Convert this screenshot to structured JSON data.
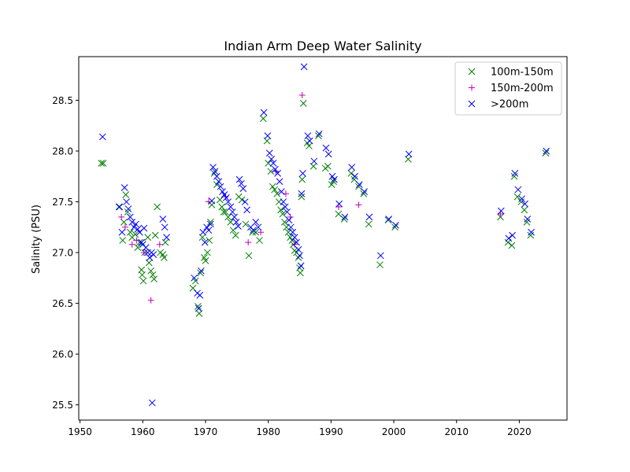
{
  "chart_data": {
    "type": "scatter",
    "title": "Indian Arm Deep Water Salinity",
    "xlabel": "",
    "ylabel": "Salinity (PSU)",
    "xlim": [
      1949.8,
      2027.6
    ],
    "ylim": [
      25.35,
      28.93
    ],
    "xticks": [
      1950,
      1960,
      1970,
      1980,
      1990,
      2000,
      2010,
      2020
    ],
    "xtick_labels": [
      "1950",
      "1960",
      "1970",
      "1980",
      "1990",
      "2000",
      "2010",
      "2020"
    ],
    "yticks": [
      25.5,
      26.0,
      26.5,
      27.0,
      27.5,
      28.0,
      28.5
    ],
    "ytick_labels": [
      "25.5",
      "26.0",
      "26.5",
      "27.0",
      "27.5",
      "28.0",
      "28.5"
    ],
    "grid": false,
    "legend_position": "top-right",
    "series": [
      {
        "name": "100m-150m",
        "marker": "x",
        "color": "#008000",
        "points": [
          [
            1953.4,
            27.88
          ],
          [
            1953.7,
            27.88
          ],
          [
            1956.2,
            27.45
          ],
          [
            1956.8,
            27.12
          ],
          [
            1957.0,
            27.3
          ],
          [
            1957.3,
            27.57
          ],
          [
            1957.6,
            27.4
          ],
          [
            1958.0,
            27.2
          ],
          [
            1958.3,
            27.15
          ],
          [
            1958.8,
            27.18
          ],
          [
            1959.2,
            27.05
          ],
          [
            1959.5,
            27.1
          ],
          [
            1959.8,
            26.83
          ],
          [
            1959.9,
            26.78
          ],
          [
            1960.1,
            26.72
          ],
          [
            1960.3,
            27.0
          ],
          [
            1960.8,
            27.15
          ],
          [
            1961.0,
            26.9
          ],
          [
            1961.3,
            26.82
          ],
          [
            1961.6,
            26.78
          ],
          [
            1961.8,
            26.74
          ],
          [
            1962.0,
            27.17
          ],
          [
            1962.3,
            27.45
          ],
          [
            1962.8,
            27.0
          ],
          [
            1963.2,
            26.98
          ],
          [
            1963.4,
            26.95
          ],
          [
            1963.6,
            27.1
          ],
          [
            1968.0,
            26.65
          ],
          [
            1968.4,
            26.72
          ],
          [
            1968.8,
            26.47
          ],
          [
            1969.0,
            26.4
          ],
          [
            1969.2,
            26.8
          ],
          [
            1969.5,
            27.15
          ],
          [
            1969.8,
            26.95
          ],
          [
            1970.0,
            26.92
          ],
          [
            1970.3,
            27.0
          ],
          [
            1970.6,
            27.12
          ],
          [
            1970.8,
            27.3
          ],
          [
            1971.0,
            27.47
          ],
          [
            1971.4,
            27.78
          ],
          [
            1971.8,
            27.67
          ],
          [
            1972.3,
            27.52
          ],
          [
            1972.6,
            27.45
          ],
          [
            1972.9,
            27.4
          ],
          [
            1973.2,
            27.4
          ],
          [
            1973.6,
            27.35
          ],
          [
            1974.0,
            27.3
          ],
          [
            1974.4,
            27.22
          ],
          [
            1974.8,
            27.17
          ],
          [
            1975.3,
            27.55
          ],
          [
            1975.8,
            27.52
          ],
          [
            1976.4,
            27.28
          ],
          [
            1976.9,
            26.97
          ],
          [
            1977.5,
            27.2
          ],
          [
            1978.0,
            27.2
          ],
          [
            1978.6,
            27.12
          ],
          [
            1979.2,
            28.32
          ],
          [
            1979.8,
            28.1
          ],
          [
            1980.0,
            27.88
          ],
          [
            1980.4,
            27.8
          ],
          [
            1980.7,
            27.65
          ],
          [
            1981.0,
            27.62
          ],
          [
            1981.4,
            27.58
          ],
          [
            1981.7,
            27.5
          ],
          [
            1982.0,
            27.42
          ],
          [
            1982.3,
            27.38
          ],
          [
            1982.6,
            27.3
          ],
          [
            1982.9,
            27.25
          ],
          [
            1983.2,
            27.2
          ],
          [
            1983.5,
            27.15
          ],
          [
            1983.8,
            27.12
          ],
          [
            1984.0,
            27.08
          ],
          [
            1984.2,
            27.02
          ],
          [
            1984.5,
            27.0
          ],
          [
            1984.8,
            26.95
          ],
          [
            1985.0,
            26.85
          ],
          [
            1985.1,
            26.8
          ],
          [
            1985.3,
            27.55
          ],
          [
            1985.4,
            27.72
          ],
          [
            1985.6,
            28.47
          ],
          [
            1986.2,
            28.08
          ],
          [
            1986.5,
            28.05
          ],
          [
            1987.2,
            27.85
          ],
          [
            1988.0,
            28.15
          ],
          [
            1989.1,
            27.83
          ],
          [
            1989.5,
            27.85
          ],
          [
            1990.1,
            27.67
          ],
          [
            1990.4,
            27.7
          ],
          [
            1991.2,
            27.38
          ],
          [
            1992.1,
            27.33
          ],
          [
            1993.2,
            27.78
          ],
          [
            1993.7,
            27.72
          ],
          [
            1994.4,
            27.65
          ],
          [
            1995.2,
            27.58
          ],
          [
            1996.0,
            27.28
          ],
          [
            1997.8,
            26.88
          ],
          [
            1999.1,
            27.32
          ],
          [
            2000.2,
            27.25
          ],
          [
            2002.3,
            27.92
          ],
          [
            2017.0,
            27.35
          ],
          [
            2018.2,
            27.1
          ],
          [
            2018.8,
            27.07
          ],
          [
            2019.2,
            27.75
          ],
          [
            2019.7,
            27.55
          ],
          [
            2020.3,
            27.5
          ],
          [
            2020.8,
            27.42
          ],
          [
            2021.2,
            27.3
          ],
          [
            2021.8,
            27.17
          ],
          [
            2024.2,
            27.98
          ]
        ]
      },
      {
        "name": "150m-200m",
        "marker": "+",
        "color": "#bf00bf",
        "points": [
          [
            1956.6,
            27.35
          ],
          [
            1957.2,
            27.25
          ],
          [
            1958.3,
            27.08
          ],
          [
            1959.0,
            27.12
          ],
          [
            1960.2,
            27.0
          ],
          [
            1961.3,
            26.53
          ],
          [
            1962.7,
            27.08
          ],
          [
            1970.5,
            27.5
          ],
          [
            1973.2,
            27.55
          ],
          [
            1976.8,
            27.1
          ],
          [
            1978.8,
            27.2
          ],
          [
            1981.2,
            27.8
          ],
          [
            1982.8,
            27.58
          ],
          [
            1983.5,
            27.35
          ],
          [
            1984.2,
            27.08
          ],
          [
            1985.4,
            28.55
          ],
          [
            1991.2,
            27.45
          ],
          [
            1994.4,
            27.47
          ],
          [
            2017.0,
            27.38
          ]
        ]
      },
      {
        "name": ">200m",
        "marker": "x",
        "color": "#0000ff",
        "points": [
          [
            1953.6,
            28.14
          ],
          [
            1956.3,
            27.45
          ],
          [
            1956.7,
            27.2
          ],
          [
            1957.1,
            27.64
          ],
          [
            1957.4,
            27.5
          ],
          [
            1957.7,
            27.43
          ],
          [
            1958.0,
            27.35
          ],
          [
            1958.3,
            27.3
          ],
          [
            1958.6,
            27.25
          ],
          [
            1958.9,
            27.28
          ],
          [
            1959.2,
            27.23
          ],
          [
            1959.5,
            27.2
          ],
          [
            1959.8,
            27.1
          ],
          [
            1960.0,
            27.08
          ],
          [
            1960.2,
            27.24
          ],
          [
            1960.5,
            27.05
          ],
          [
            1960.8,
            27.0
          ],
          [
            1961.1,
            26.95
          ],
          [
            1961.4,
            27.0
          ],
          [
            1961.7,
            26.98
          ],
          [
            1961.5,
            25.52
          ],
          [
            1963.2,
            27.33
          ],
          [
            1963.5,
            27.25
          ],
          [
            1963.8,
            27.15
          ],
          [
            1968.2,
            26.75
          ],
          [
            1968.7,
            26.6
          ],
          [
            1968.9,
            26.45
          ],
          [
            1969.1,
            26.58
          ],
          [
            1969.3,
            26.82
          ],
          [
            1969.6,
            27.2
          ],
          [
            1969.9,
            27.1
          ],
          [
            1970.2,
            27.25
          ],
          [
            1970.5,
            27.22
          ],
          [
            1970.8,
            27.28
          ],
          [
            1971.0,
            27.51
          ],
          [
            1971.2,
            27.84
          ],
          [
            1971.5,
            27.8
          ],
          [
            1971.8,
            27.75
          ],
          [
            1972.1,
            27.7
          ],
          [
            1972.4,
            27.65
          ],
          [
            1972.7,
            27.6
          ],
          [
            1973.0,
            27.57
          ],
          [
            1973.3,
            27.54
          ],
          [
            1973.6,
            27.5
          ],
          [
            1974.0,
            27.45
          ],
          [
            1974.3,
            27.4
          ],
          [
            1974.6,
            27.35
          ],
          [
            1974.9,
            27.3
          ],
          [
            1975.2,
            27.26
          ],
          [
            1975.4,
            27.72
          ],
          [
            1975.7,
            27.68
          ],
          [
            1976.0,
            27.63
          ],
          [
            1976.3,
            27.5
          ],
          [
            1976.6,
            27.42
          ],
          [
            1977.2,
            27.25
          ],
          [
            1977.6,
            27.22
          ],
          [
            1978.0,
            27.3
          ],
          [
            1978.4,
            27.25
          ],
          [
            1979.3,
            28.38
          ],
          [
            1979.9,
            28.15
          ],
          [
            1980.2,
            27.98
          ],
          [
            1980.5,
            27.92
          ],
          [
            1980.8,
            27.88
          ],
          [
            1981.1,
            27.82
          ],
          [
            1981.5,
            27.78
          ],
          [
            1981.8,
            27.7
          ],
          [
            1982.1,
            27.6
          ],
          [
            1982.4,
            27.5
          ],
          [
            1982.7,
            27.45
          ],
          [
            1983.0,
            27.4
          ],
          [
            1983.3,
            27.32
          ],
          [
            1983.6,
            27.25
          ],
          [
            1983.9,
            27.2
          ],
          [
            1984.2,
            27.15
          ],
          [
            1984.5,
            27.1
          ],
          [
            1984.8,
            27.03
          ],
          [
            1985.0,
            26.97
          ],
          [
            1985.2,
            26.87
          ],
          [
            1985.3,
            27.58
          ],
          [
            1985.5,
            27.78
          ],
          [
            1985.7,
            28.83
          ],
          [
            1986.3,
            28.15
          ],
          [
            1986.6,
            28.1
          ],
          [
            1987.3,
            27.9
          ],
          [
            1988.1,
            28.17
          ],
          [
            1989.2,
            28.03
          ],
          [
            1989.6,
            27.97
          ],
          [
            1990.2,
            27.75
          ],
          [
            1990.5,
            27.72
          ],
          [
            1991.3,
            27.48
          ],
          [
            1992.2,
            27.35
          ],
          [
            1993.3,
            27.84
          ],
          [
            1993.8,
            27.75
          ],
          [
            1994.5,
            27.67
          ],
          [
            1995.3,
            27.6
          ],
          [
            1996.1,
            27.35
          ],
          [
            1997.9,
            26.97
          ],
          [
            1999.2,
            27.33
          ],
          [
            2000.3,
            27.27
          ],
          [
            2002.4,
            27.97
          ],
          [
            2017.1,
            27.41
          ],
          [
            2018.3,
            27.14
          ],
          [
            2018.9,
            27.17
          ],
          [
            2019.3,
            27.78
          ],
          [
            2019.8,
            27.62
          ],
          [
            2020.4,
            27.53
          ],
          [
            2020.9,
            27.48
          ],
          [
            2021.3,
            27.33
          ],
          [
            2021.9,
            27.2
          ],
          [
            2024.3,
            28.0
          ]
        ]
      }
    ]
  }
}
